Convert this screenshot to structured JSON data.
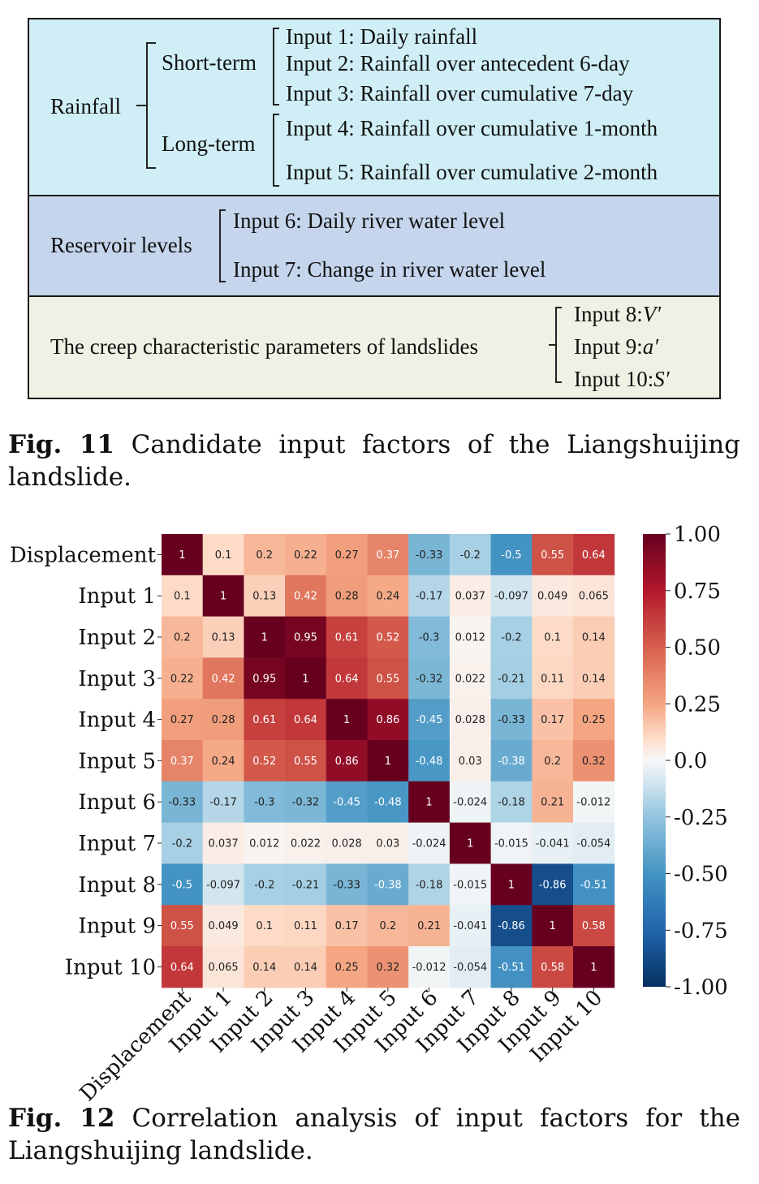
{
  "figure11": {
    "caption_label": "Fig. 11",
    "caption_text": "Candidate input factors of the Liangshuijing landslide.",
    "colors": {
      "rainfall_bg": "#cfeef5",
      "reservoir_bg": "#c4d5ec",
      "creep_bg": "#eef1e4"
    },
    "rainfall": {
      "label": "Rainfall",
      "short_term": {
        "label": "Short-term",
        "inputs": [
          "Input 1: Daily rainfall",
          "Input 2: Rainfall over antecedent 6-day",
          "Input 3: Rainfall over cumulative 7-day"
        ]
      },
      "long_term": {
        "label": "Long-term",
        "inputs": [
          "Input 4: Rainfall over cumulative 1-month",
          "Input 5: Rainfall over cumulative 2-month"
        ]
      }
    },
    "reservoir": {
      "label": "Reservoir levels",
      "inputs": [
        "Input 6: Daily river water level",
        "Input 7: Change in river water level"
      ]
    },
    "creep": {
      "label": "The creep characteristic parameters of landslides",
      "inputs": [
        {
          "prefix": "Input 8:",
          "symbol": "V′"
        },
        {
          "prefix": "Input 9:",
          "symbol": "a′"
        },
        {
          "prefix": "Input 10:",
          "symbol": "S′"
        }
      ]
    }
  },
  "figure12": {
    "caption_label": "Fig. 12",
    "caption_text": "Correlation analysis of input factors for the Liangshuijing landslide."
  },
  "chart_data": {
    "type": "heatmap",
    "title": "",
    "labels": [
      "Displacement",
      "Input 1",
      "Input 2",
      "Input 3",
      "Input 4",
      "Input 5",
      "Input 6",
      "Input 7",
      "Input 8",
      "Input 9",
      "Input 10"
    ],
    "matrix": [
      [
        1,
        0.1,
        0.2,
        0.22,
        0.27,
        0.37,
        -0.33,
        -0.2,
        -0.5,
        0.55,
        0.64
      ],
      [
        0.1,
        1,
        0.13,
        0.42,
        0.28,
        0.24,
        -0.17,
        0.037,
        -0.097,
        0.049,
        0.065
      ],
      [
        0.2,
        0.13,
        1,
        0.95,
        0.61,
        0.52,
        -0.3,
        0.012,
        -0.2,
        0.1,
        0.14
      ],
      [
        0.22,
        0.42,
        0.95,
        1,
        0.64,
        0.55,
        -0.32,
        0.022,
        -0.21,
        0.11,
        0.14
      ],
      [
        0.27,
        0.28,
        0.61,
        0.64,
        1,
        0.86,
        -0.45,
        0.028,
        -0.33,
        0.17,
        0.25
      ],
      [
        0.37,
        0.24,
        0.52,
        0.55,
        0.86,
        1,
        -0.48,
        0.03,
        -0.38,
        0.2,
        0.32
      ],
      [
        -0.33,
        -0.17,
        -0.3,
        -0.32,
        -0.45,
        -0.48,
        1,
        -0.024,
        -0.18,
        0.21,
        -0.012
      ],
      [
        -0.2,
        0.037,
        0.012,
        0.022,
        0.028,
        0.03,
        -0.024,
        1,
        -0.015,
        -0.041,
        -0.054
      ],
      [
        -0.5,
        -0.097,
        -0.2,
        -0.21,
        -0.33,
        -0.38,
        -0.18,
        -0.015,
        1,
        -0.86,
        -0.51
      ],
      [
        0.55,
        0.049,
        0.1,
        0.11,
        0.17,
        0.2,
        0.21,
        -0.041,
        -0.86,
        1,
        0.58
      ],
      [
        0.64,
        0.065,
        0.14,
        0.14,
        0.25,
        0.32,
        -0.012,
        -0.054,
        -0.51,
        0.58,
        1
      ]
    ],
    "colorbar": {
      "range": [
        -1,
        1
      ],
      "ticks": [
        1.0,
        0.75,
        0.5,
        0.25,
        0.0,
        -0.25,
        -0.5,
        -0.75,
        -1.0
      ],
      "tick_labels": [
        "1.00",
        "0.75",
        "0.50",
        "0.25",
        "0.0",
        "-0.25",
        "-0.50",
        "-0.75",
        "-1.00"
      ],
      "colormap": "RdBu_r"
    }
  }
}
